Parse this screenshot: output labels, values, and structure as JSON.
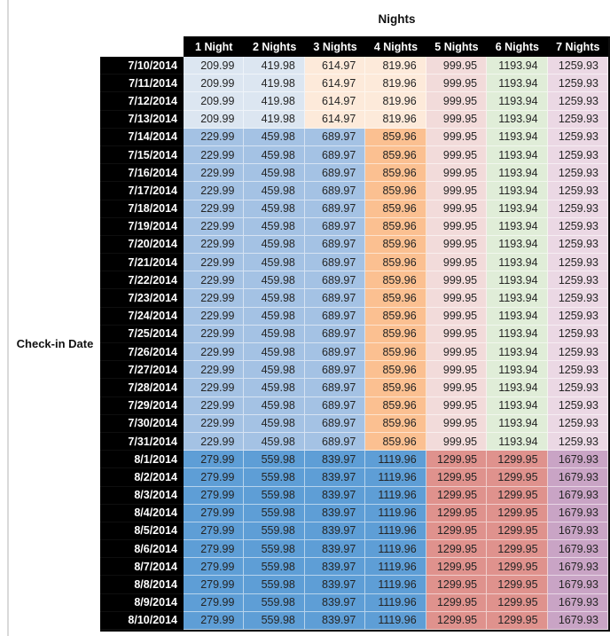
{
  "chart_data": {
    "type": "table",
    "title": "Nights",
    "row_axis_label": "Check-in Date",
    "columns": [
      "1 Night",
      "2 Nights",
      "3 Nights",
      "4 Nights",
      "5 Nights",
      "6 Nights",
      "7 Nights"
    ],
    "header_bg": "#000000",
    "header_text_color": "#ffffff",
    "value_text_color": "#242424",
    "color_groups": {
      "tier_low": [
        "#dce6f1",
        "#dce6f1",
        "#fdeada",
        "#fdeada",
        "#f2dbda",
        "#e0edd8",
        "#ebd8e4"
      ],
      "tier_mid": [
        "#a4c2e4",
        "#a4c2e4",
        "#a4c2e4",
        "#fbc091",
        "#f2dbda",
        "#e0edd8",
        "#ebd8e4"
      ],
      "tier_high": [
        "#5e9ed6",
        "#5e9ed6",
        "#5e9ed6",
        "#5e9ed6",
        "#df928d",
        "#df928d",
        "#c9a4c5"
      ]
    },
    "rows": [
      {
        "date": "7/10/2014",
        "group": "tier_low",
        "values": [
          "209.99",
          "419.98",
          "614.97",
          "819.96",
          "999.95",
          "1193.94",
          "1259.93"
        ]
      },
      {
        "date": "7/11/2014",
        "group": "tier_low",
        "values": [
          "209.99",
          "419.98",
          "614.97",
          "819.96",
          "999.95",
          "1193.94",
          "1259.93"
        ]
      },
      {
        "date": "7/12/2014",
        "group": "tier_low",
        "values": [
          "209.99",
          "419.98",
          "614.97",
          "819.96",
          "999.95",
          "1193.94",
          "1259.93"
        ]
      },
      {
        "date": "7/13/2014",
        "group": "tier_low",
        "values": [
          "209.99",
          "419.98",
          "614.97",
          "819.96",
          "999.95",
          "1193.94",
          "1259.93"
        ]
      },
      {
        "date": "7/14/2014",
        "group": "tier_mid",
        "values": [
          "229.99",
          "459.98",
          "689.97",
          "859.96",
          "999.95",
          "1193.94",
          "1259.93"
        ]
      },
      {
        "date": "7/15/2014",
        "group": "tier_mid",
        "values": [
          "229.99",
          "459.98",
          "689.97",
          "859.96",
          "999.95",
          "1193.94",
          "1259.93"
        ]
      },
      {
        "date": "7/16/2014",
        "group": "tier_mid",
        "values": [
          "229.99",
          "459.98",
          "689.97",
          "859.96",
          "999.95",
          "1193.94",
          "1259.93"
        ]
      },
      {
        "date": "7/17/2014",
        "group": "tier_mid",
        "values": [
          "229.99",
          "459.98",
          "689.97",
          "859.96",
          "999.95",
          "1193.94",
          "1259.93"
        ]
      },
      {
        "date": "7/18/2014",
        "group": "tier_mid",
        "values": [
          "229.99",
          "459.98",
          "689.97",
          "859.96",
          "999.95",
          "1193.94",
          "1259.93"
        ]
      },
      {
        "date": "7/19/2014",
        "group": "tier_mid",
        "values": [
          "229.99",
          "459.98",
          "689.97",
          "859.96",
          "999.95",
          "1193.94",
          "1259.93"
        ]
      },
      {
        "date": "7/20/2014",
        "group": "tier_mid",
        "values": [
          "229.99",
          "459.98",
          "689.97",
          "859.96",
          "999.95",
          "1193.94",
          "1259.93"
        ]
      },
      {
        "date": "7/21/2014",
        "group": "tier_mid",
        "values": [
          "229.99",
          "459.98",
          "689.97",
          "859.96",
          "999.95",
          "1193.94",
          "1259.93"
        ]
      },
      {
        "date": "7/22/2014",
        "group": "tier_mid",
        "values": [
          "229.99",
          "459.98",
          "689.97",
          "859.96",
          "999.95",
          "1193.94",
          "1259.93"
        ]
      },
      {
        "date": "7/23/2014",
        "group": "tier_mid",
        "values": [
          "229.99",
          "459.98",
          "689.97",
          "859.96",
          "999.95",
          "1193.94",
          "1259.93"
        ]
      },
      {
        "date": "7/24/2014",
        "group": "tier_mid",
        "values": [
          "229.99",
          "459.98",
          "689.97",
          "859.96",
          "999.95",
          "1193.94",
          "1259.93"
        ]
      },
      {
        "date": "7/25/2014",
        "group": "tier_mid",
        "values": [
          "229.99",
          "459.98",
          "689.97",
          "859.96",
          "999.95",
          "1193.94",
          "1259.93"
        ]
      },
      {
        "date": "7/26/2014",
        "group": "tier_mid",
        "values": [
          "229.99",
          "459.98",
          "689.97",
          "859.96",
          "999.95",
          "1193.94",
          "1259.93"
        ]
      },
      {
        "date": "7/27/2014",
        "group": "tier_mid",
        "values": [
          "229.99",
          "459.98",
          "689.97",
          "859.96",
          "999.95",
          "1193.94",
          "1259.93"
        ]
      },
      {
        "date": "7/28/2014",
        "group": "tier_mid",
        "values": [
          "229.99",
          "459.98",
          "689.97",
          "859.96",
          "999.95",
          "1193.94",
          "1259.93"
        ]
      },
      {
        "date": "7/29/2014",
        "group": "tier_mid",
        "values": [
          "229.99",
          "459.98",
          "689.97",
          "859.96",
          "999.95",
          "1193.94",
          "1259.93"
        ]
      },
      {
        "date": "7/30/2014",
        "group": "tier_mid",
        "values": [
          "229.99",
          "459.98",
          "689.97",
          "859.96",
          "999.95",
          "1193.94",
          "1259.93"
        ]
      },
      {
        "date": "7/31/2014",
        "group": "tier_mid",
        "values": [
          "229.99",
          "459.98",
          "689.97",
          "859.96",
          "999.95",
          "1193.94",
          "1259.93"
        ]
      },
      {
        "date": "8/1/2014",
        "group": "tier_high",
        "values": [
          "279.99",
          "559.98",
          "839.97",
          "1119.96",
          "1299.95",
          "1299.95",
          "1679.93"
        ]
      },
      {
        "date": "8/2/2014",
        "group": "tier_high",
        "values": [
          "279.99",
          "559.98",
          "839.97",
          "1119.96",
          "1299.95",
          "1299.95",
          "1679.93"
        ]
      },
      {
        "date": "8/3/2014",
        "group": "tier_high",
        "values": [
          "279.99",
          "559.98",
          "839.97",
          "1119.96",
          "1299.95",
          "1299.95",
          "1679.93"
        ]
      },
      {
        "date": "8/4/2014",
        "group": "tier_high",
        "values": [
          "279.99",
          "559.98",
          "839.97",
          "1119.96",
          "1299.95",
          "1299.95",
          "1679.93"
        ]
      },
      {
        "date": "8/5/2014",
        "group": "tier_high",
        "values": [
          "279.99",
          "559.98",
          "839.97",
          "1119.96",
          "1299.95",
          "1299.95",
          "1679.93"
        ]
      },
      {
        "date": "8/6/2014",
        "group": "tier_high",
        "values": [
          "279.99",
          "559.98",
          "839.97",
          "1119.96",
          "1299.95",
          "1299.95",
          "1679.93"
        ]
      },
      {
        "date": "8/7/2014",
        "group": "tier_high",
        "values": [
          "279.99",
          "559.98",
          "839.97",
          "1119.96",
          "1299.95",
          "1299.95",
          "1679.93"
        ]
      },
      {
        "date": "8/8/2014",
        "group": "tier_high",
        "values": [
          "279.99",
          "559.98",
          "839.97",
          "1119.96",
          "1299.95",
          "1299.95",
          "1679.93"
        ]
      },
      {
        "date": "8/9/2014",
        "group": "tier_high",
        "values": [
          "279.99",
          "559.98",
          "839.97",
          "1119.96",
          "1299.95",
          "1299.95",
          "1679.93"
        ]
      },
      {
        "date": "8/10/2014",
        "group": "tier_high",
        "values": [
          "279.99",
          "559.98",
          "839.97",
          "1119.96",
          "1299.95",
          "1299.95",
          "1679.93"
        ]
      }
    ]
  }
}
